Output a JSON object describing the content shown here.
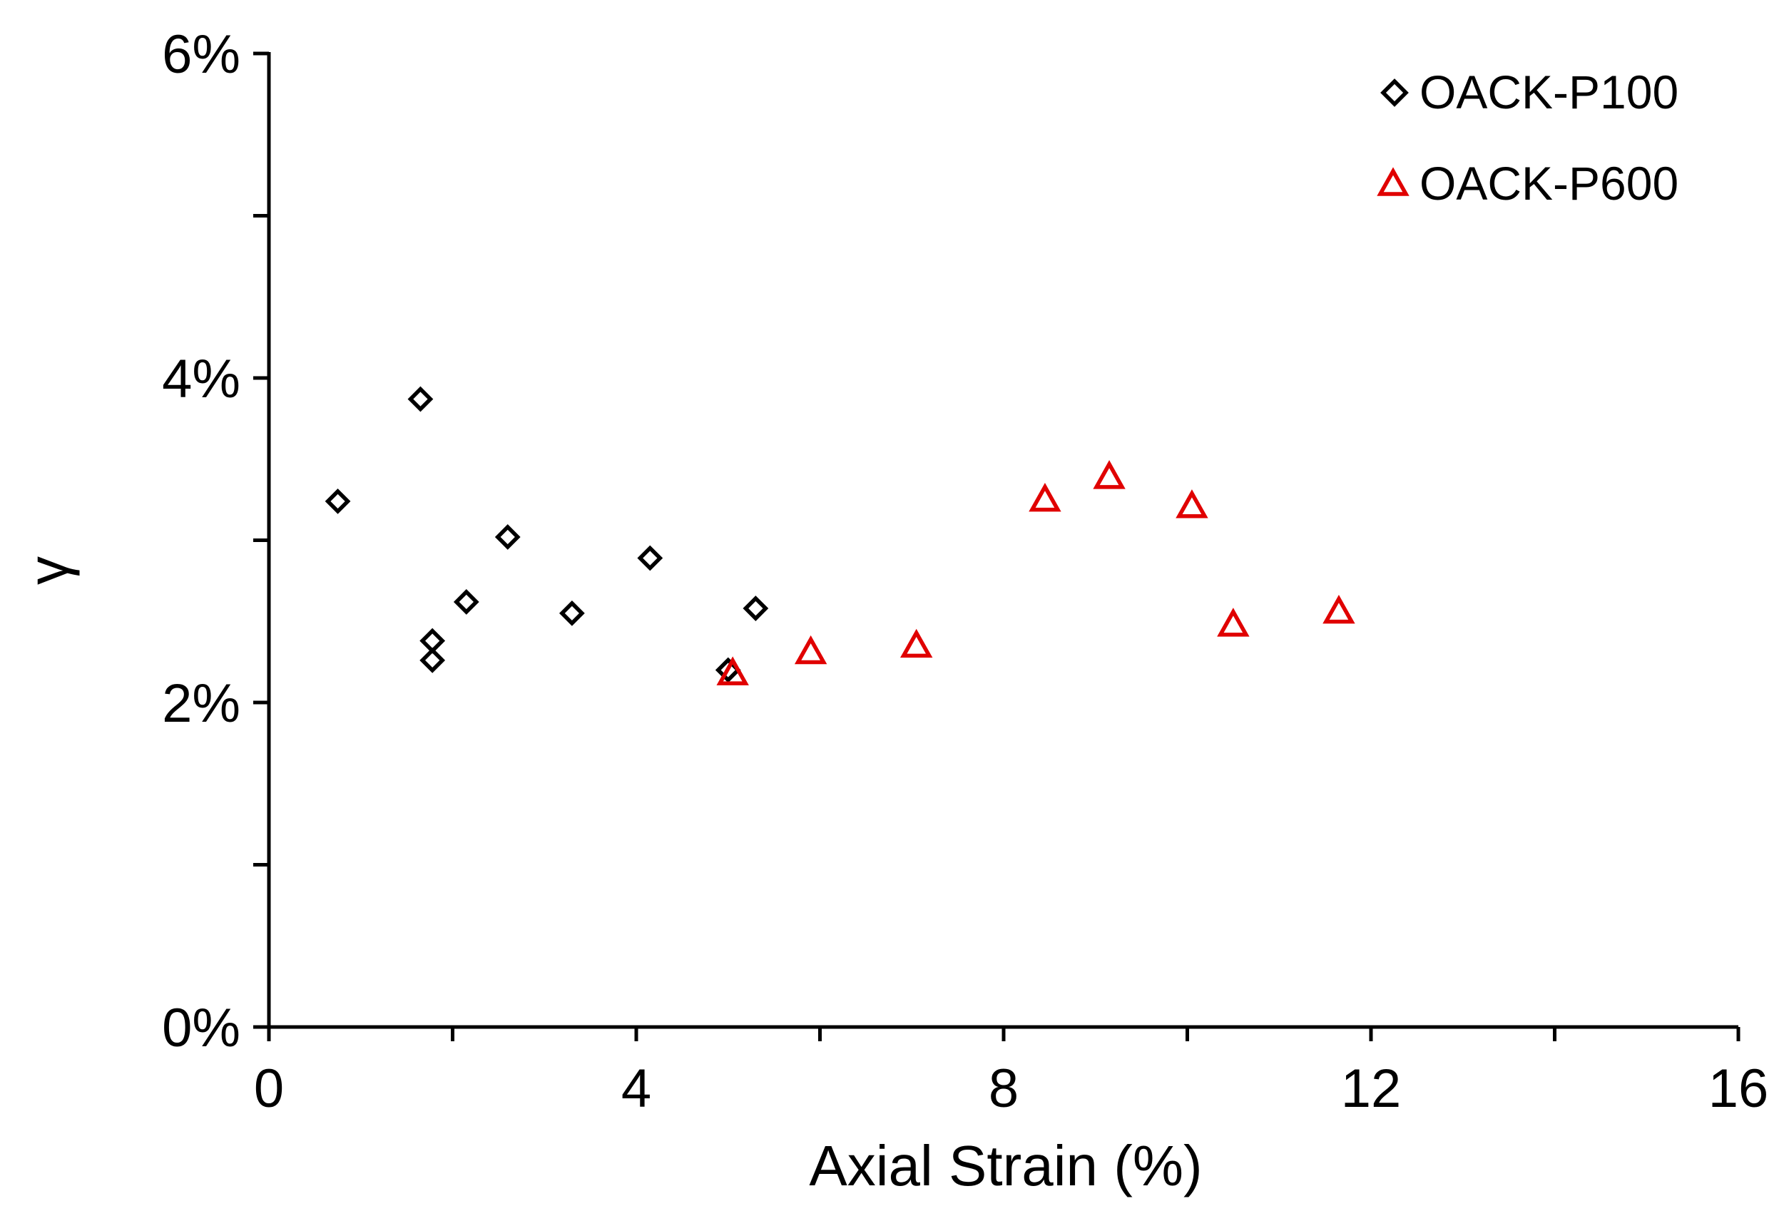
{
  "chart_data": {
    "type": "scatter",
    "title": "",
    "xlabel": "Axial Strain (%)",
    "ylabel": "γ",
    "xlim": [
      0,
      16
    ],
    "ylim": [
      0,
      0.06
    ],
    "x_major_ticks": [
      0,
      4,
      8,
      12,
      16
    ],
    "x_minor_ticks": [
      2,
      6,
      10,
      14
    ],
    "y_major_ticks": [
      0,
      0.02,
      0.04,
      0.06
    ],
    "y_minor_ticks": [
      0.01,
      0.03,
      0.05
    ],
    "x_tick_labels": [
      "0",
      "4",
      "8",
      "12",
      "16"
    ],
    "y_tick_labels": [
      "0%",
      "2%",
      "4%",
      "6%"
    ],
    "grid": false,
    "legend_position": "top-right",
    "series": [
      {
        "name": "OACK-P100",
        "marker": "diamond",
        "color": "#000000",
        "x": [
          0.75,
          1.65,
          1.78,
          1.78,
          2.15,
          2.6,
          3.3,
          4.15,
          5.0,
          5.3
        ],
        "y": [
          0.0324,
          0.0387,
          0.0238,
          0.0226,
          0.0262,
          0.0302,
          0.0255,
          0.0289,
          0.022,
          0.0258
        ]
      },
      {
        "name": "OACK-P600",
        "marker": "triangle",
        "color": "#e00000",
        "x": [
          5.05,
          5.9,
          7.05,
          8.45,
          9.15,
          10.05,
          10.5,
          11.65
        ],
        "y": [
          0.0218,
          0.0231,
          0.0235,
          0.0325,
          0.0339,
          0.0321,
          0.0248,
          0.0256
        ]
      }
    ]
  }
}
